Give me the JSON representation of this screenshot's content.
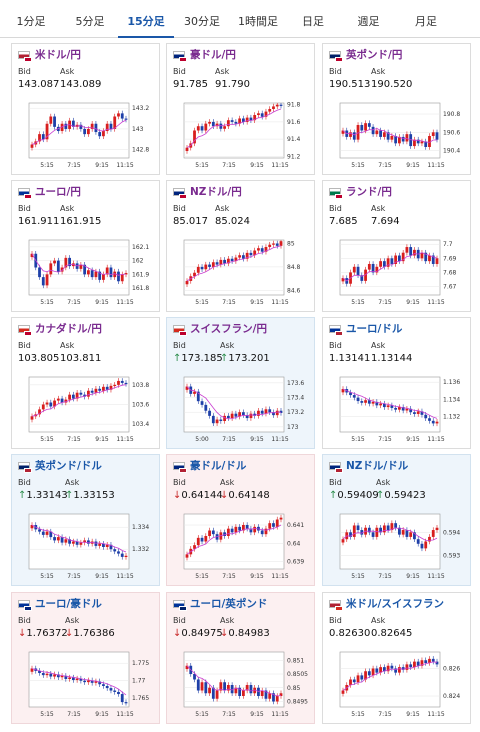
{
  "tabs": [
    {
      "label": "1分足",
      "active": false
    },
    {
      "label": "5分足",
      "active": false
    },
    {
      "label": "15分足",
      "active": true
    },
    {
      "label": "30分足",
      "active": false
    },
    {
      "label": "1時間足",
      "active": false
    },
    {
      "label": "日足",
      "active": false
    },
    {
      "label": "週足",
      "active": false
    },
    {
      "label": "月足",
      "active": false
    }
  ],
  "labels": {
    "bid": "Bid",
    "ask": "Ask"
  },
  "colors": {
    "up_candle": "#d81e1e",
    "down_candle": "#1e3fa8",
    "moving_average": "#c93dd1",
    "name_purple": "#7a2b8f",
    "name_blue": "#1a57a8",
    "bg_up": "#eef5fb",
    "bg_down": "#fcf0f1"
  },
  "cards": [
    {
      "name": "米ドル/円",
      "bid": "143.087",
      "ask": "143.089",
      "bid_arrow": "",
      "ask_arrow": "",
      "flag": [
        "#b22234",
        "#bc002d"
      ],
      "chart_data": {
        "type": "candlestick",
        "x_ticks": [
          "5:15",
          "7:15",
          "9:15",
          "11:15"
        ],
        "y_ticks": [
          "143.2",
          "143",
          "142.8"
        ],
        "ylim": [
          142.72,
          143.25
        ],
        "closes": [
          142.85,
          142.88,
          142.95,
          142.9,
          143.05,
          143.12,
          143.02,
          142.98,
          143.05,
          143.0,
          143.08,
          143.02,
          143.04,
          143.0,
          142.95,
          143.0,
          143.05,
          142.97,
          142.93,
          142.98,
          143.05,
          143.0,
          143.12,
          143.15,
          143.1,
          143.09
        ]
      }
    },
    {
      "name": "豪ドル/円",
      "bid": "91.785",
      "ask": "91.790",
      "bid_arrow": "",
      "ask_arrow": "",
      "flag": [
        "#00247d",
        "#bc002d"
      ],
      "chart_data": {
        "type": "candlestick",
        "x_ticks": [
          "5:15",
          "7:15",
          "9:15",
          "11:15"
        ],
        "y_ticks": [
          "91.8",
          "91.6",
          "91.4",
          "91.2"
        ],
        "ylim": [
          91.18,
          91.82
        ],
        "closes": [
          91.3,
          91.35,
          91.5,
          91.55,
          91.5,
          91.58,
          91.6,
          91.55,
          91.58,
          91.52,
          91.55,
          91.62,
          91.6,
          91.58,
          91.64,
          91.6,
          91.65,
          91.62,
          91.68,
          91.7,
          91.66,
          91.72,
          91.75,
          91.78,
          91.8,
          91.79
        ]
      }
    },
    {
      "name": "英ポンド/円",
      "bid": "190.513",
      "ask": "190.520",
      "bid_arrow": "",
      "ask_arrow": "",
      "flag": [
        "#012169",
        "#bc002d"
      ],
      "chart_data": {
        "type": "candlestick",
        "x_ticks": [
          "5:15",
          "7:15",
          "9:15",
          "11:15"
        ],
        "y_ticks": [
          "190.8",
          "190.6",
          "190.4"
        ],
        "ylim": [
          190.32,
          190.92
        ],
        "closes": [
          190.62,
          190.55,
          190.6,
          190.52,
          190.68,
          190.62,
          190.7,
          190.66,
          190.58,
          190.62,
          190.55,
          190.6,
          190.52,
          190.56,
          190.48,
          190.55,
          190.5,
          190.58,
          190.45,
          190.52,
          190.48,
          190.5,
          190.44,
          190.56,
          190.6,
          190.52
        ]
      }
    },
    {
      "name": "ユーロ/円",
      "bid": "161.911",
      "ask": "161.915",
      "bid_arrow": "",
      "ask_arrow": "",
      "flag": [
        "#003399",
        "#bc002d"
      ],
      "chart_data": {
        "type": "candlestick",
        "x_ticks": [
          "5:15",
          "7:15",
          "9:15",
          "11:15"
        ],
        "y_ticks": [
          "162.1",
          "162",
          "161.9",
          "161.8"
        ],
        "ylim": [
          161.75,
          162.15
        ],
        "closes": [
          162.05,
          161.95,
          161.88,
          161.82,
          161.9,
          161.98,
          162.0,
          161.92,
          161.95,
          162.02,
          161.96,
          161.98,
          161.94,
          161.97,
          161.9,
          161.93,
          161.88,
          161.92,
          161.86,
          161.9,
          161.95,
          161.88,
          161.92,
          161.85,
          161.9,
          161.91
        ]
      }
    },
    {
      "name": "NZドル/円",
      "bid": "85.017",
      "ask": "85.024",
      "bid_arrow": "",
      "ask_arrow": "",
      "flag": [
        "#00247d",
        "#bc002d"
      ],
      "chart_data": {
        "type": "candlestick",
        "x_ticks": [
          "5:15",
          "7:15",
          "9:15",
          "11:15"
        ],
        "y_ticks": [
          "85",
          "84.8",
          "84.6"
        ],
        "ylim": [
          84.56,
          85.03
        ],
        "closes": [
          84.68,
          84.72,
          84.75,
          84.8,
          84.78,
          84.82,
          84.8,
          84.84,
          84.82,
          84.86,
          84.83,
          84.87,
          84.85,
          84.88,
          84.9,
          84.87,
          84.92,
          84.9,
          84.94,
          84.96,
          84.93,
          84.97,
          84.99,
          85.0,
          84.98,
          85.02
        ]
      }
    },
    {
      "name": "ランド/円",
      "bid": "7.685",
      "ask": "7.694",
      "bid_arrow": "",
      "ask_arrow": "",
      "flag": [
        "#007a4d",
        "#bc002d"
      ],
      "chart_data": {
        "type": "candlestick",
        "x_ticks": [
          "5:15",
          "7:15",
          "9:15",
          "11:15"
        ],
        "y_ticks": [
          "7.7",
          "7.69",
          "7.68",
          "7.67"
        ],
        "ylim": [
          7.664,
          7.703
        ],
        "closes": [
          7.676,
          7.672,
          7.68,
          7.684,
          7.678,
          7.674,
          7.682,
          7.686,
          7.68,
          7.684,
          7.688,
          7.684,
          7.69,
          7.686,
          7.692,
          7.688,
          7.694,
          7.698,
          7.692,
          7.696,
          7.69,
          7.694,
          7.688,
          7.692,
          7.686,
          7.69
        ]
      }
    },
    {
      "name": "カナダドル/円",
      "bid": "103.805",
      "ask": "103.811",
      "bid_arrow": "",
      "ask_arrow": "",
      "flag": [
        "#d52b1e",
        "#bc002d"
      ],
      "chart_data": {
        "type": "candlestick",
        "x_ticks": [
          "5:15",
          "7:15",
          "9:15",
          "11:15"
        ],
        "y_ticks": [
          "103.8",
          "103.6",
          "103.4"
        ],
        "ylim": [
          103.32,
          103.88
        ],
        "closes": [
          103.48,
          103.5,
          103.55,
          103.6,
          103.62,
          103.58,
          103.64,
          103.66,
          103.62,
          103.65,
          103.7,
          103.66,
          103.72,
          103.7,
          103.68,
          103.74,
          103.72,
          103.76,
          103.74,
          103.78,
          103.75,
          103.79,
          103.8,
          103.84,
          103.82,
          103.81
        ]
      }
    },
    {
      "name": "スイスフラン/円",
      "bid": "173.185",
      "ask": "173.201",
      "bid_arrow": "up",
      "ask_arrow": "up",
      "flag": [
        "#d52b1e",
        "#bc002d"
      ],
      "chart_data": {
        "type": "candlestick",
        "x_ticks": [
          "5:00",
          "7:15",
          "9:15",
          "11:15"
        ],
        "y_ticks": [
          "173.6",
          "173.4",
          "173.2",
          "173"
        ],
        "ylim": [
          172.93,
          173.68
        ],
        "closes": [
          173.55,
          173.45,
          173.48,
          173.35,
          173.3,
          173.22,
          173.15,
          173.05,
          173.1,
          173.08,
          173.15,
          173.12,
          173.18,
          173.14,
          173.2,
          173.16,
          173.12,
          173.18,
          173.15,
          173.22,
          173.18,
          173.24,
          173.2,
          173.16,
          173.22,
          173.19
        ]
      }
    },
    {
      "name": "ユーロ/ドル",
      "bid": "1.13141",
      "ask": "1.13144",
      "bid_arrow": "",
      "ask_arrow": "",
      "flag": [
        "#003399",
        "#b22234"
      ],
      "chart_data": {
        "type": "candlestick",
        "x_ticks": [
          "5:15",
          "7:15",
          "9:15",
          "11:15"
        ],
        "y_ticks": [
          "1.136",
          "1.134",
          "1.132"
        ],
        "ylim": [
          1.1302,
          1.1366
        ],
        "closes": [
          1.1352,
          1.1348,
          1.1345,
          1.1342,
          1.1338,
          1.1336,
          1.1339,
          1.1335,
          1.1337,
          1.1333,
          1.1335,
          1.1331,
          1.1333,
          1.133,
          1.1328,
          1.1331,
          1.1327,
          1.1329,
          1.1325,
          1.1323,
          1.1326,
          1.1322,
          1.1318,
          1.1315,
          1.1312,
          1.1314
        ]
      }
    },
    {
      "name": "英ポンド/ドル",
      "bid": "1.33143",
      "ask": "1.33153",
      "bid_arrow": "up",
      "ask_arrow": "up",
      "flag": [
        "#012169",
        "#b22234"
      ],
      "chart_data": {
        "type": "candlestick",
        "x_ticks": [
          "5:15",
          "7:15",
          "9:15",
          "11:15"
        ],
        "y_ticks": [
          "1.334",
          "1.332"
        ],
        "ylim": [
          1.3302,
          1.3352
        ],
        "closes": [
          1.3342,
          1.3338,
          1.3336,
          1.3333,
          1.3336,
          1.3331,
          1.3328,
          1.3331,
          1.3326,
          1.3329,
          1.3325,
          1.3327,
          1.3324,
          1.3326,
          1.3328,
          1.3325,
          1.3327,
          1.3323,
          1.3325,
          1.3322,
          1.3324,
          1.332,
          1.3318,
          1.3316,
          1.3313,
          1.3314
        ]
      }
    },
    {
      "name": "豪ドル/ドル",
      "bid": "0.64144",
      "ask": "0.64148",
      "bid_arrow": "down",
      "ask_arrow": "down",
      "flag": [
        "#00247d",
        "#b22234"
      ],
      "chart_data": {
        "type": "candlestick",
        "x_ticks": [
          "5:15",
          "7:15",
          "9:15",
          "11:15"
        ],
        "y_ticks": [
          "0.641",
          "0.64",
          "0.639"
        ],
        "ylim": [
          0.6386,
          0.6416
        ],
        "closes": [
          0.6394,
          0.6397,
          0.6399,
          0.6403,
          0.6401,
          0.6404,
          0.6407,
          0.6405,
          0.6402,
          0.6406,
          0.6404,
          0.6408,
          0.6406,
          0.6409,
          0.6407,
          0.641,
          0.6408,
          0.6406,
          0.6409,
          0.6407,
          0.6405,
          0.6408,
          0.6411,
          0.6409,
          0.6413,
          0.6414
        ]
      }
    },
    {
      "name": "NZドル/ドル",
      "bid": "0.59409",
      "ask": "0.59423",
      "bid_arrow": "up",
      "ask_arrow": "up",
      "flag": [
        "#00247d",
        "#b22234"
      ],
      "chart_data": {
        "type": "candlestick",
        "x_ticks": [
          "5:15",
          "7:15",
          "9:15",
          "11:15"
        ],
        "y_ticks": [
          "0.594",
          "0.593"
        ],
        "ylim": [
          0.5924,
          0.5948
        ],
        "closes": [
          0.5937,
          0.594,
          0.5938,
          0.5943,
          0.5941,
          0.5939,
          0.5942,
          0.594,
          0.5938,
          0.5942,
          0.594,
          0.5943,
          0.5941,
          0.5944,
          0.5942,
          0.5939,
          0.5941,
          0.5938,
          0.594,
          0.5937,
          0.5935,
          0.5933,
          0.5936,
          0.5938,
          0.5941,
          0.5942
        ]
      }
    },
    {
      "name": "ユーロ/豪ドル",
      "bid": "1.76372",
      "ask": "1.76386",
      "bid_arrow": "down",
      "ask_arrow": "down",
      "flag": [
        "#003399",
        "#00247d"
      ],
      "chart_data": {
        "type": "candlestick",
        "x_ticks": [
          "5:15",
          "7:15",
          "9:15",
          "11:15"
        ],
        "y_ticks": [
          "1.775",
          "1.77",
          "1.765"
        ],
        "ylim": [
          1.7625,
          1.7782
        ],
        "closes": [
          1.7735,
          1.7728,
          1.7722,
          1.7716,
          1.772,
          1.7712,
          1.7718,
          1.771,
          1.7714,
          1.7705,
          1.7709,
          1.7702,
          1.7706,
          1.77,
          1.7696,
          1.7701,
          1.7694,
          1.7698,
          1.769,
          1.7685,
          1.7679,
          1.7672,
          1.7668,
          1.7662,
          1.7639,
          1.7637
        ]
      }
    },
    {
      "name": "ユーロ/英ポンド",
      "bid": "0.84975",
      "ask": "0.84983",
      "bid_arrow": "down",
      "ask_arrow": "down",
      "flag": [
        "#003399",
        "#012169"
      ],
      "chart_data": {
        "type": "candlestick",
        "x_ticks": [
          "5:15",
          "7:15",
          "9:15",
          "11:15"
        ],
        "y_ticks": [
          "0.851",
          "0.8505",
          "0.85",
          "0.8495"
        ],
        "ylim": [
          0.8493,
          0.8513
        ],
        "closes": [
          0.8508,
          0.8505,
          0.8503,
          0.8499,
          0.8502,
          0.8498,
          0.85,
          0.8496,
          0.8499,
          0.8502,
          0.8499,
          0.8501,
          0.8498,
          0.85,
          0.8497,
          0.8499,
          0.8501,
          0.8498,
          0.85,
          0.8497,
          0.8499,
          0.8496,
          0.8498,
          0.8495,
          0.8497,
          0.8498
        ]
      }
    },
    {
      "name": "米ドル/スイスフラン",
      "bid": "0.82630",
      "ask": "0.82645",
      "bid_arrow": "",
      "ask_arrow": "",
      "flag": [
        "#b22234",
        "#d52b1e"
      ],
      "chart_data": {
        "type": "candlestick",
        "x_ticks": [
          "5:15",
          "7:15",
          "9:15",
          "11:15"
        ],
        "y_ticks": [
          "0.826",
          "0.824"
        ],
        "ylim": [
          0.8232,
          0.8272
        ],
        "closes": [
          0.8244,
          0.8248,
          0.8252,
          0.825,
          0.8255,
          0.8252,
          0.8258,
          0.8255,
          0.826,
          0.8257,
          0.8261,
          0.8258,
          0.8262,
          0.826,
          0.8257,
          0.8261,
          0.8259,
          0.8263,
          0.8261,
          0.8265,
          0.8262,
          0.8266,
          0.8264,
          0.8267,
          0.8265,
          0.8263
        ]
      }
    }
  ]
}
